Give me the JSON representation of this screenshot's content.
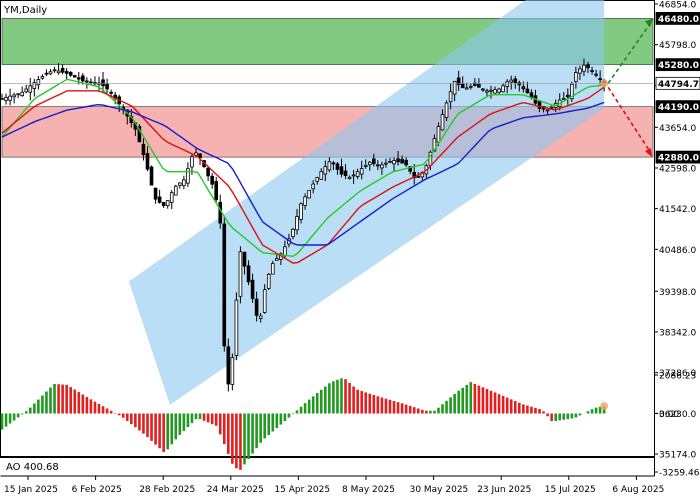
{
  "symbol_label": "YM,Daily",
  "indicator_label": "AO 400.68",
  "chart_data": [
    {
      "type": "candlestick",
      "instrument": "YM",
      "timeframe": "Daily",
      "ylim": [
        35174,
        46854
      ],
      "y_ticks": [
        "46854.0",
        "45798.0",
        "44742.0",
        "43654.0",
        "42598.0",
        "41542.0",
        "40486.0",
        "39398.0",
        "38342.0",
        "37286.0",
        "36230.0",
        "35174.0"
      ],
      "x_ticks": [
        "15 Jan 2025",
        "6 Feb 2025",
        "28 Feb 2025",
        "24 Mar 2025",
        "15 Apr 2025",
        "8 May 2025",
        "30 May 2025",
        "23 Jun 2025",
        "15 Jul 2025",
        "6 Aug 2025"
      ],
      "price_labels": [
        {
          "value": 46480.0,
          "text": "46480.0",
          "kind": "target_up"
        },
        {
          "value": 45280.0,
          "text": "45280.0",
          "kind": "resistance"
        },
        {
          "value": 44794.7,
          "text": "44794.7",
          "kind": "last_price"
        },
        {
          "value": 44190.0,
          "text": "44190.0",
          "kind": "support"
        },
        {
          "value": 42880.0,
          "text": "42880.0",
          "kind": "target_down"
        }
      ],
      "zones": [
        {
          "name": "buy-zone",
          "from": 45280,
          "to": 46480,
          "color": "#6cbf6c"
        },
        {
          "name": "sell-zone",
          "from": 42880,
          "to": 44190,
          "color": "#f4a3a3"
        }
      ],
      "channel": {
        "color": "#8cc8f0",
        "anchors": [
          [
            0.195,
            39650
          ],
          [
            0.258,
            36450
          ],
          [
            0.925,
            44150
          ],
          [
            0.925,
            47600
          ],
          [
            0.858,
            47600
          ]
        ]
      },
      "price_path": [
        [
          0.0,
          44400
        ],
        [
          0.03,
          44550
        ],
        [
          0.06,
          44950
        ],
        [
          0.08,
          45150
        ],
        [
          0.1,
          45050
        ],
        [
          0.125,
          44850
        ],
        [
          0.15,
          44800
        ],
        [
          0.165,
          44600
        ],
        [
          0.185,
          44150
        ],
        [
          0.205,
          43600
        ],
        [
          0.22,
          42800
        ],
        [
          0.235,
          41800
        ],
        [
          0.25,
          41600
        ],
        [
          0.265,
          42100
        ],
        [
          0.28,
          42300
        ],
        [
          0.295,
          43050
        ],
        [
          0.305,
          42850
        ],
        [
          0.315,
          42450
        ],
        [
          0.325,
          42100
        ],
        [
          0.335,
          41300
        ],
        [
          0.34,
          38500
        ],
        [
          0.345,
          36700
        ],
        [
          0.355,
          37800
        ],
        [
          0.365,
          40500
        ],
        [
          0.375,
          39900
        ],
        [
          0.385,
          39200
        ],
        [
          0.395,
          38500
        ],
        [
          0.405,
          39600
        ],
        [
          0.415,
          40100
        ],
        [
          0.43,
          40400
        ],
        [
          0.445,
          40900
        ],
        [
          0.46,
          41700
        ],
        [
          0.475,
          42100
        ],
        [
          0.49,
          42500
        ],
        [
          0.505,
          42800
        ],
        [
          0.52,
          42450
        ],
        [
          0.535,
          42350
        ],
        [
          0.55,
          42550
        ],
        [
          0.565,
          42750
        ],
        [
          0.58,
          42650
        ],
        [
          0.6,
          42800
        ],
        [
          0.62,
          42700
        ],
        [
          0.635,
          42300
        ],
        [
          0.65,
          42550
        ],
        [
          0.665,
          43400
        ],
        [
          0.68,
          44150
        ],
        [
          0.695,
          44850
        ],
        [
          0.71,
          44650
        ],
        [
          0.725,
          44750
        ],
        [
          0.745,
          44600
        ],
        [
          0.765,
          44650
        ],
        [
          0.78,
          44900
        ],
        [
          0.795,
          44750
        ],
        [
          0.81,
          44500
        ],
        [
          0.825,
          44150
        ],
        [
          0.84,
          44100
        ],
        [
          0.855,
          44350
        ],
        [
          0.87,
          44450
        ],
        [
          0.88,
          45050
        ],
        [
          0.895,
          45280
        ],
        [
          0.91,
          45050
        ],
        [
          0.925,
          44794.7
        ]
      ],
      "moving_averages": [
        {
          "color": "#22cc22",
          "points": [
            [
              0,
              43400
            ],
            [
              0.05,
              44400
            ],
            [
              0.1,
              44900
            ],
            [
              0.15,
              44700
            ],
            [
              0.2,
              43900
            ],
            [
              0.25,
              42500
            ],
            [
              0.3,
              42500
            ],
            [
              0.35,
              41100
            ],
            [
              0.4,
              40400
            ],
            [
              0.45,
              40300
            ],
            [
              0.5,
              41300
            ],
            [
              0.55,
              42000
            ],
            [
              0.6,
              42500
            ],
            [
              0.65,
              42700
            ],
            [
              0.7,
              44000
            ],
            [
              0.75,
              44500
            ],
            [
              0.8,
              44500
            ],
            [
              0.85,
              44200
            ],
            [
              0.9,
              44700
            ],
            [
              0.925,
              44750
            ]
          ]
        },
        {
          "color": "#dd1111",
          "points": [
            [
              0,
              43500
            ],
            [
              0.05,
              44200
            ],
            [
              0.1,
              44600
            ],
            [
              0.15,
              44600
            ],
            [
              0.2,
              44200
            ],
            [
              0.25,
              43300
            ],
            [
              0.3,
              42900
            ],
            [
              0.35,
              42100
            ],
            [
              0.4,
              40600
            ],
            [
              0.45,
              40100
            ],
            [
              0.5,
              40600
            ],
            [
              0.55,
              41600
            ],
            [
              0.6,
              42100
            ],
            [
              0.65,
              42500
            ],
            [
              0.7,
              43400
            ],
            [
              0.75,
              44000
            ],
            [
              0.8,
              44300
            ],
            [
              0.85,
              44100
            ],
            [
              0.9,
              44400
            ],
            [
              0.925,
              44700
            ]
          ]
        },
        {
          "color": "#1a1acc",
          "points": [
            [
              0,
              43400
            ],
            [
              0.05,
              43800
            ],
            [
              0.1,
              44100
            ],
            [
              0.15,
              44250
            ],
            [
              0.2,
              44050
            ],
            [
              0.25,
              43700
            ],
            [
              0.3,
              43100
            ],
            [
              0.35,
              42700
            ],
            [
              0.4,
              41200
            ],
            [
              0.45,
              40600
            ],
            [
              0.5,
              40600
            ],
            [
              0.55,
              41200
            ],
            [
              0.6,
              41800
            ],
            [
              0.65,
              42300
            ],
            [
              0.7,
              42700
            ],
            [
              0.75,
              43600
            ],
            [
              0.8,
              43900
            ],
            [
              0.85,
              44000
            ],
            [
              0.9,
              44150
            ],
            [
              0.925,
              44300
            ]
          ]
        }
      ]
    },
    {
      "type": "bar",
      "name": "AO",
      "ylim": [
        -3259.46,
        2086.23
      ],
      "y_ticks": [
        "2086.23",
        "0.00",
        "-3259.46"
      ],
      "last_value": 400.68,
      "profile": [
        [
          0.0,
          -900
        ],
        [
          0.04,
          200
        ],
        [
          0.08,
          1600
        ],
        [
          0.1,
          1550
        ],
        [
          0.13,
          900
        ],
        [
          0.165,
          200
        ],
        [
          0.185,
          -200
        ],
        [
          0.22,
          -1200
        ],
        [
          0.25,
          -2200
        ],
        [
          0.27,
          -1300
        ],
        [
          0.3,
          -250
        ],
        [
          0.33,
          -700
        ],
        [
          0.355,
          -2900
        ],
        [
          0.365,
          -3200
        ],
        [
          0.4,
          -1500
        ],
        [
          0.44,
          -250
        ],
        [
          0.47,
          700
        ],
        [
          0.505,
          1700
        ],
        [
          0.525,
          1950
        ],
        [
          0.545,
          1300
        ],
        [
          0.58,
          900
        ],
        [
          0.615,
          550
        ],
        [
          0.65,
          150
        ],
        [
          0.665,
          150
        ],
        [
          0.7,
          1200
        ],
        [
          0.72,
          1700
        ],
        [
          0.76,
          1100
        ],
        [
          0.8,
          500
        ],
        [
          0.83,
          200
        ],
        [
          0.845,
          -450
        ],
        [
          0.88,
          -250
        ],
        [
          0.91,
          300
        ],
        [
          0.925,
          400
        ]
      ],
      "up_color": "#1f9a1f",
      "down_color": "#e21e1e"
    }
  ]
}
